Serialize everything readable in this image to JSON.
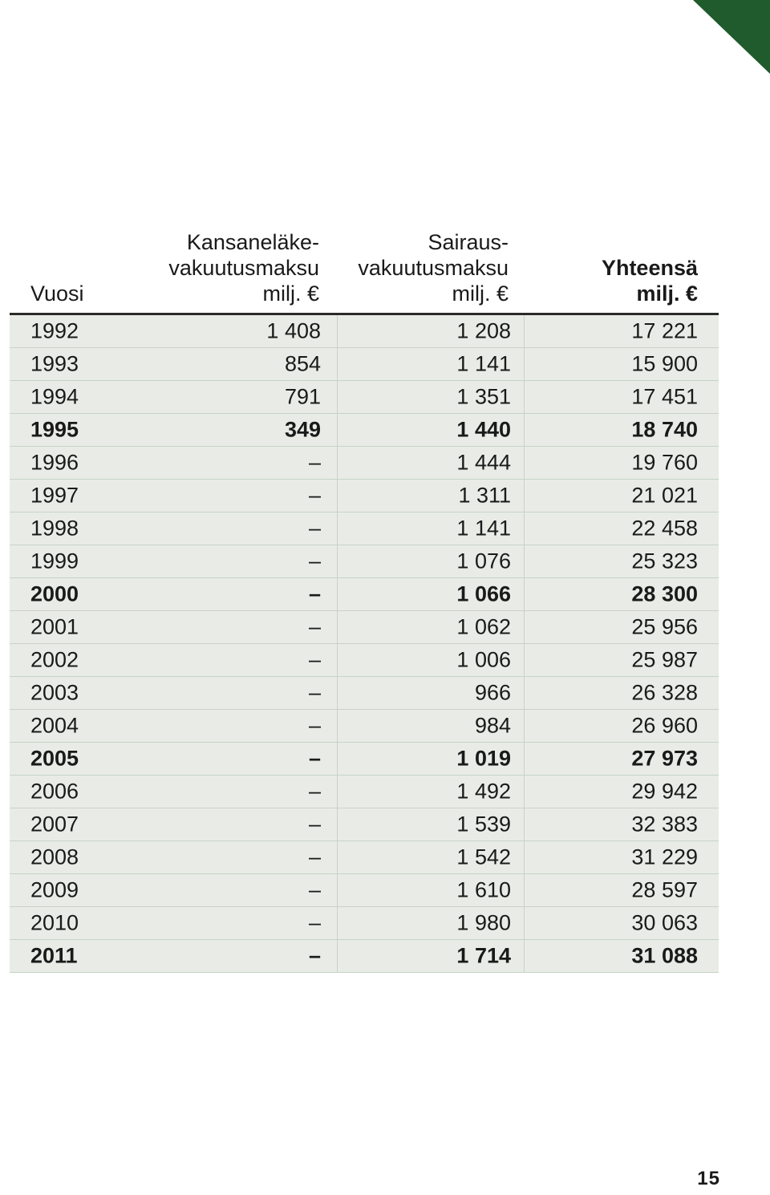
{
  "header": {
    "year": "Vuosi",
    "kansanelake": "Kansaneläke-\nvakuutusmaksu\nmilj. €",
    "sairaus": "Sairaus-\nvakuutusmaksu\nmilj. €",
    "total": "Yhteensä\nmilj. €"
  },
  "rows": [
    {
      "year": "1992",
      "kel": "1 408",
      "sai": "1 208",
      "tot": "17 221",
      "bold": false
    },
    {
      "year": "1993",
      "kel": "854",
      "sai": "1 141",
      "tot": "15 900",
      "bold": false
    },
    {
      "year": "1994",
      "kel": "791",
      "sai": "1 351",
      "tot": "17 451",
      "bold": false
    },
    {
      "year": "1995",
      "kel": "349",
      "sai": "1 440",
      "tot": "18 740",
      "bold": true
    },
    {
      "year": "1996",
      "kel": "–",
      "sai": "1 444",
      "tot": "19 760",
      "bold": false
    },
    {
      "year": "1997",
      "kel": "–",
      "sai": "1 311",
      "tot": "21 021",
      "bold": false
    },
    {
      "year": "1998",
      "kel": "–",
      "sai": "1 141",
      "tot": "22 458",
      "bold": false
    },
    {
      "year": "1999",
      "kel": "–",
      "sai": "1 076",
      "tot": "25 323",
      "bold": false
    },
    {
      "year": "2000",
      "kel": "–",
      "sai": "1 066",
      "tot": "28 300",
      "bold": true
    },
    {
      "year": "2001",
      "kel": "–",
      "sai": "1 062",
      "tot": "25 956",
      "bold": false
    },
    {
      "year": "2002",
      "kel": "–",
      "sai": "1 006",
      "tot": "25 987",
      "bold": false
    },
    {
      "year": "2003",
      "kel": "–",
      "sai": "966",
      "tot": "26 328",
      "bold": false
    },
    {
      "year": "2004",
      "kel": "–",
      "sai": "984",
      "tot": "26 960",
      "bold": false
    },
    {
      "year": "2005",
      "kel": "–",
      "sai": "1 019",
      "tot": "27 973",
      "bold": true
    },
    {
      "year": "2006",
      "kel": "–",
      "sai": "1 492",
      "tot": "29 942",
      "bold": false
    },
    {
      "year": "2007",
      "kel": "–",
      "sai": "1 539",
      "tot": "32 383",
      "bold": false
    },
    {
      "year": "2008",
      "kel": "–",
      "sai": "1 542",
      "tot": "31 229",
      "bold": false
    },
    {
      "year": "2009",
      "kel": "–",
      "sai": "1 610",
      "tot": "28 597",
      "bold": false
    },
    {
      "year": "2010",
      "kel": "–",
      "sai": "1 980",
      "tot": "30 063",
      "bold": false
    },
    {
      "year": "2011",
      "kel": "–",
      "sai": "1 714",
      "tot": "31 088",
      "bold": true
    }
  ],
  "page_number": "15",
  "colors": {
    "corner": "#1f5b2c",
    "row_bg": "#e9ece6"
  }
}
